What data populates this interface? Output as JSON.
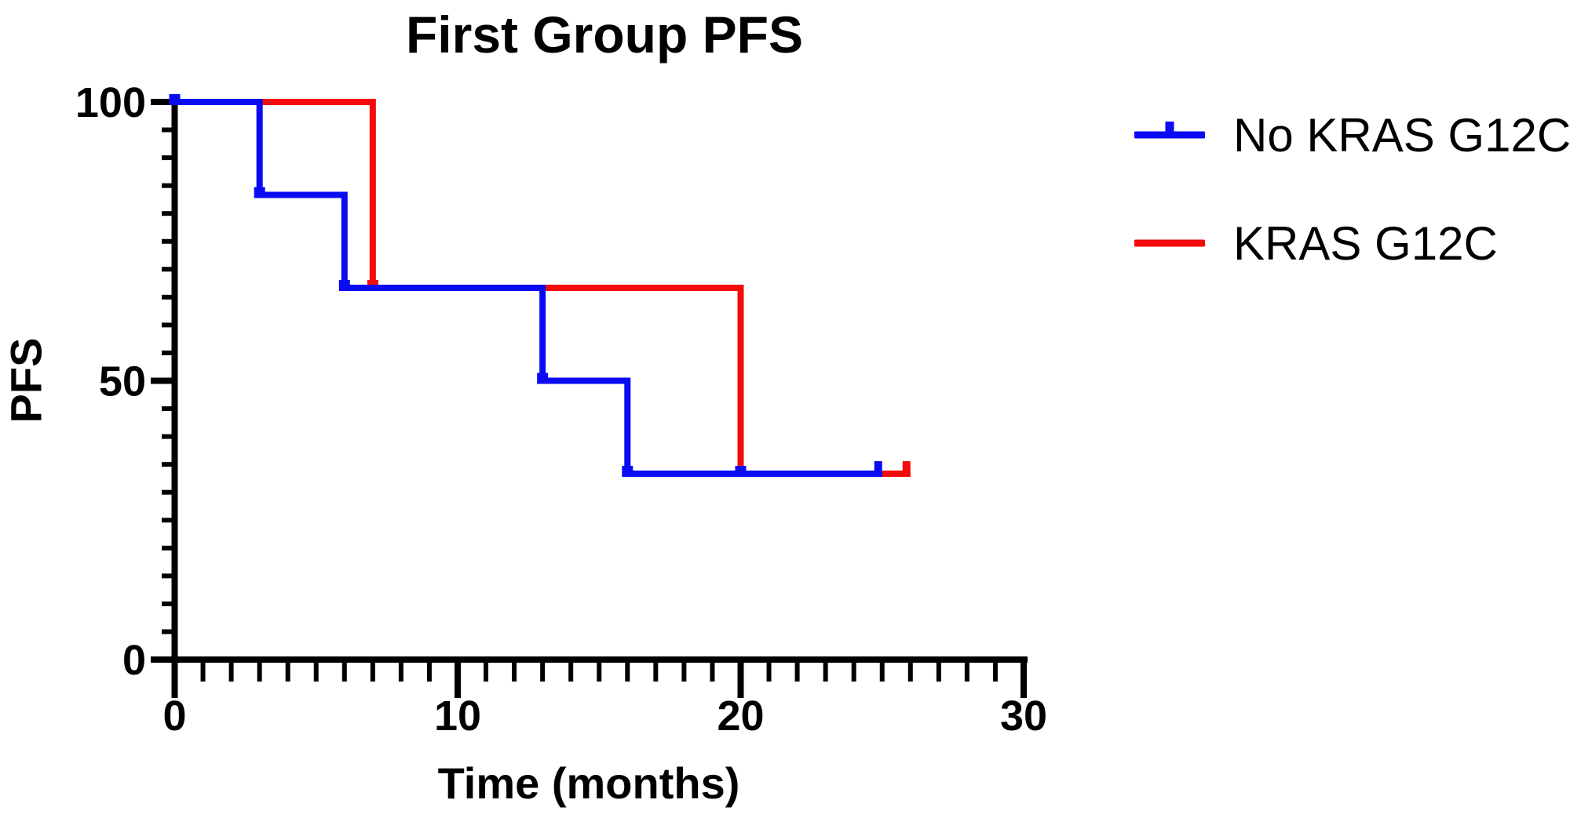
{
  "page": {
    "background": "#ffffff",
    "text_color": "#000000"
  },
  "chart_data": {
    "type": "line",
    "subtype": "kaplan-meier-step",
    "title": "First Group PFS",
    "xlabel": "Time (months)",
    "ylabel": "PFS",
    "xlim": [
      0,
      30
    ],
    "ylim": [
      0,
      100
    ],
    "grid": false,
    "axis_color": "#000000",
    "x_major_ticks": [
      0,
      10,
      20,
      30
    ],
    "x_tick_labels": [
      "0",
      "10",
      "20",
      "30"
    ],
    "x_minor_tick_step": 1,
    "y_major_ticks": [
      0,
      50,
      100
    ],
    "y_tick_labels": [
      "0",
      "50",
      "100"
    ],
    "y_minor_tick_step": 5,
    "legend_position": "right-top",
    "series": [
      {
        "name": "No KRAS G12C",
        "color": "#0b0bf2",
        "steps": [
          [
            0,
            100
          ],
          [
            3,
            100
          ],
          [
            3,
            83.33
          ],
          [
            6,
            83.33
          ],
          [
            6,
            66.67
          ],
          [
            13,
            66.67
          ],
          [
            13,
            50
          ],
          [
            16,
            50
          ],
          [
            16,
            33.33
          ],
          [
            25,
            33.33
          ]
        ],
        "marker_points": [
          [
            0,
            100
          ],
          [
            3,
            83.33
          ],
          [
            6,
            66.67
          ],
          [
            13,
            50
          ],
          [
            16,
            33.33
          ],
          [
            20,
            33.33
          ]
        ],
        "censor_end": [
          25,
          33.33
        ]
      },
      {
        "name": "KRAS G12C",
        "color": "#f50b0b",
        "steps": [
          [
            0,
            100
          ],
          [
            7,
            100
          ],
          [
            7,
            66.67
          ],
          [
            20,
            66.67
          ],
          [
            20,
            33.33
          ],
          [
            26,
            33.33
          ]
        ],
        "marker_points": [
          [
            0,
            100
          ],
          [
            7,
            66.67
          ],
          [
            20,
            33.33
          ]
        ],
        "censor_end": [
          26,
          33.33
        ]
      }
    ]
  },
  "legend": {
    "items": [
      {
        "label": "No KRAS G12C",
        "color": "#0b0bf2",
        "censor_tick": true
      },
      {
        "label": "KRAS G12C",
        "color": "#f50b0b",
        "censor_tick": false
      }
    ]
  }
}
